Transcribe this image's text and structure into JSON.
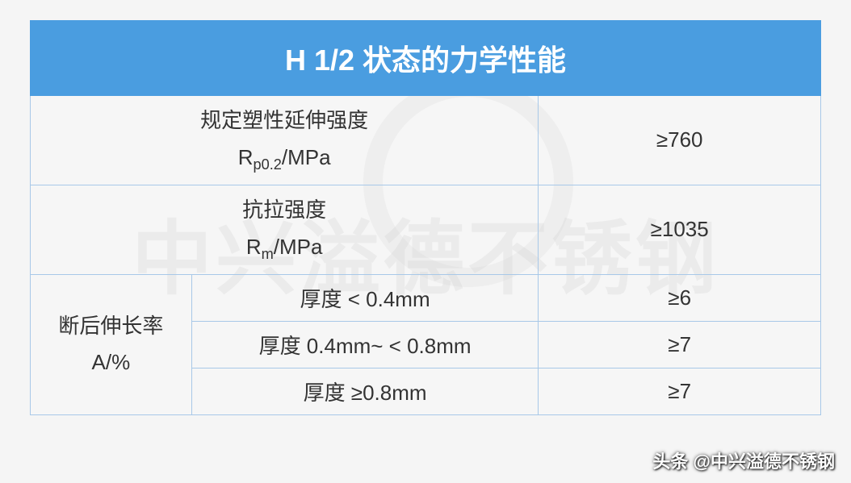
{
  "table": {
    "title": "H 1/2 状态的力学性能",
    "header_bg": "#4a9de0",
    "header_fg": "#ffffff",
    "border_color": "#a8c8e8",
    "title_fontsize": 36,
    "cell_fontsize": 26,
    "text_color": "#333333",
    "rows": [
      {
        "label_line1": "规定塑性延伸强度",
        "label_line2_prefix": "R",
        "label_line2_sub": "p0.2",
        "label_line2_suffix": "/MPa",
        "value": "≥760"
      },
      {
        "label_line1": "抗拉强度",
        "label_line2_prefix": "R",
        "label_line2_sub": "m",
        "label_line2_suffix": "/MPa",
        "value": "≥1035"
      }
    ],
    "elongation": {
      "group_label_line1": "断后伸长率",
      "group_label_line2": "A/%",
      "subrows": [
        {
          "condition": "厚度 < 0.4mm",
          "value": "≥6"
        },
        {
          "condition": "厚度 0.4mm~ < 0.8mm",
          "value": "≥7"
        },
        {
          "condition": "厚度 ≥0.8mm",
          "value": "≥7"
        }
      ]
    }
  },
  "watermark_text": "中兴溢德不锈钢",
  "attribution": "头条 @中兴溢德不锈钢"
}
